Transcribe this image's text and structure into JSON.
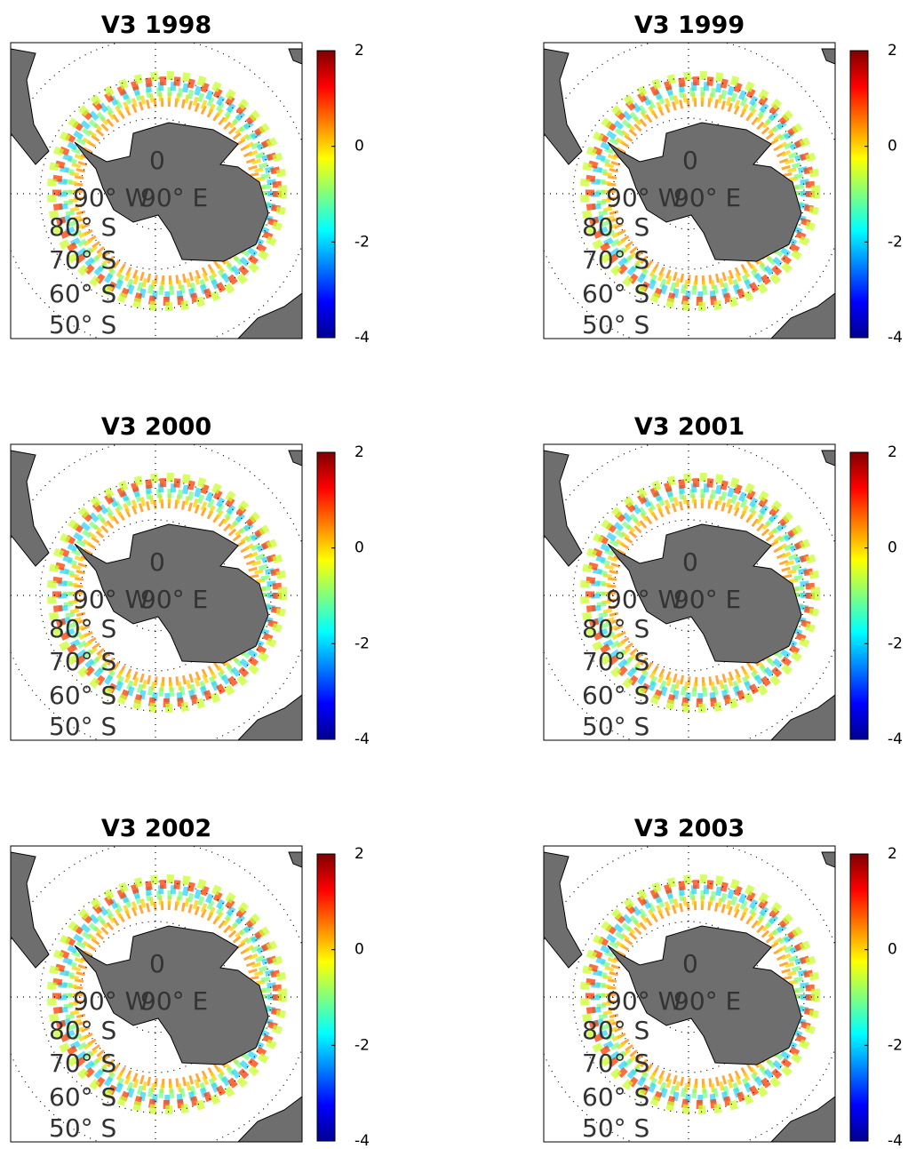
{
  "panels": [
    {
      "title": "V3 1998"
    },
    {
      "title": "V3 1999"
    },
    {
      "title": "V3 2000"
    },
    {
      "title": "V3 2001"
    },
    {
      "title": "V3 2002"
    },
    {
      "title": "V3 2003"
    }
  ],
  "colorbar": {
    "clim": [
      -4,
      2
    ],
    "ticks": [
      2,
      0,
      -2,
      -4
    ],
    "colormap": "jet"
  },
  "map_labels": {
    "meridians": [
      "0",
      "90° W",
      "90° E"
    ],
    "parallels": [
      "80° S",
      "70° S",
      "60° S",
      "50° S"
    ]
  }
}
